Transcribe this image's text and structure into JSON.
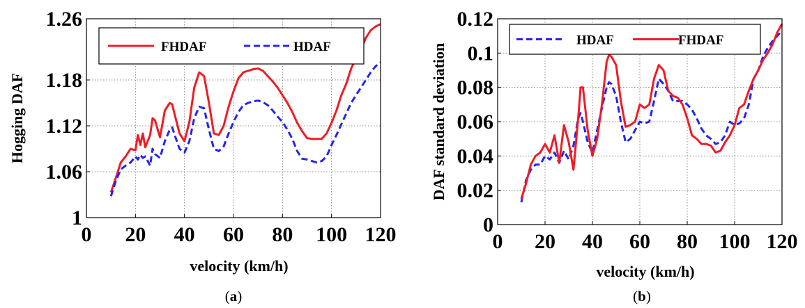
{
  "chart_data": [
    {
      "type": "line",
      "caption_letter": "a",
      "xlabel": "velocity (km/h)",
      "ylabel": "Hogging DAF",
      "xlim": [
        0,
        120
      ],
      "ylim": [
        1.0,
        1.26
      ],
      "xticks": [
        "0",
        "20",
        "40",
        "60",
        "80",
        "100",
        "120"
      ],
      "yticks": [
        "1",
        "1.06",
        "1.12",
        "1.18",
        "1.26"
      ],
      "ytick_values": [
        1.0,
        1.06,
        1.12,
        1.18,
        1.26
      ],
      "grid": true,
      "legend_position": "top",
      "series": [
        {
          "name": "FHDAF",
          "color": "#ee1c25",
          "style": "solid",
          "x": [
            10,
            12,
            14,
            16,
            18,
            20,
            21,
            22,
            23,
            24,
            26,
            27,
            28,
            30,
            32,
            34,
            35,
            36,
            38,
            40,
            42,
            44,
            46,
            48,
            50,
            52,
            54,
            56,
            58,
            60,
            62,
            64,
            66,
            68,
            70,
            72,
            74,
            76,
            78,
            80,
            82,
            84,
            86,
            88,
            90,
            92,
            94,
            96,
            98,
            100,
            102,
            104,
            106,
            108,
            110,
            112,
            114,
            116,
            118,
            120
          ],
          "y": [
            1.033,
            1.052,
            1.072,
            1.08,
            1.09,
            1.088,
            1.108,
            1.095,
            1.11,
            1.092,
            1.108,
            1.13,
            1.127,
            1.105,
            1.14,
            1.15,
            1.148,
            1.135,
            1.11,
            1.1,
            1.125,
            1.17,
            1.19,
            1.185,
            1.15,
            1.11,
            1.108,
            1.12,
            1.145,
            1.165,
            1.182,
            1.19,
            1.192,
            1.194,
            1.195,
            1.192,
            1.185,
            1.178,
            1.17,
            1.16,
            1.15,
            1.138,
            1.124,
            1.113,
            1.104,
            1.103,
            1.103,
            1.103,
            1.11,
            1.124,
            1.14,
            1.16,
            1.175,
            1.195,
            1.208,
            1.22,
            1.235,
            1.245,
            1.25,
            1.253
          ]
        },
        {
          "name": "HDAF",
          "color": "#2424f0",
          "style": "dashed",
          "x": [
            10,
            12,
            14,
            16,
            18,
            20,
            21,
            22,
            23,
            24,
            26,
            27,
            28,
            30,
            32,
            34,
            35,
            36,
            38,
            40,
            42,
            44,
            46,
            48,
            50,
            52,
            54,
            56,
            58,
            60,
            62,
            64,
            66,
            68,
            70,
            72,
            74,
            76,
            78,
            80,
            82,
            84,
            86,
            88,
            90,
            92,
            94,
            96,
            98,
            100,
            102,
            104,
            106,
            108,
            110,
            112,
            114,
            116,
            118,
            120
          ],
          "y": [
            1.028,
            1.048,
            1.063,
            1.068,
            1.072,
            1.08,
            1.076,
            1.082,
            1.078,
            1.08,
            1.068,
            1.09,
            1.083,
            1.078,
            1.1,
            1.115,
            1.118,
            1.108,
            1.09,
            1.085,
            1.1,
            1.13,
            1.145,
            1.143,
            1.115,
            1.09,
            1.087,
            1.093,
            1.11,
            1.125,
            1.138,
            1.147,
            1.15,
            1.152,
            1.153,
            1.151,
            1.147,
            1.14,
            1.132,
            1.125,
            1.115,
            1.103,
            1.087,
            1.077,
            1.076,
            1.074,
            1.072,
            1.074,
            1.08,
            1.095,
            1.108,
            1.122,
            1.136,
            1.15,
            1.16,
            1.17,
            1.18,
            1.19,
            1.198,
            1.203
          ]
        }
      ]
    },
    {
      "type": "line",
      "caption_letter": "b",
      "xlabel": "velocity (km/h)",
      "ylabel": "DAF standard deviation",
      "xlim": [
        0,
        120
      ],
      "ylim": [
        0,
        0.12
      ],
      "xticks": [
        "0",
        "20",
        "40",
        "60",
        "80",
        "100",
        "120"
      ],
      "yticks": [
        "0",
        "0.02",
        "0.04",
        "0.06",
        "0.08",
        "0.1",
        "0.12"
      ],
      "ytick_values": [
        0,
        0.02,
        0.04,
        0.06,
        0.08,
        0.1,
        0.12
      ],
      "grid": true,
      "legend_position": "top",
      "series": [
        {
          "name": "HDAF",
          "color": "#2424f0",
          "style": "dashed",
          "x": [
            10,
            12,
            14,
            16,
            18,
            20,
            22,
            24,
            26,
            28,
            30,
            32,
            34,
            35,
            36,
            38,
            40,
            42,
            44,
            46,
            47,
            48,
            50,
            52,
            54,
            56,
            58,
            60,
            62,
            64,
            66,
            68,
            70,
            72,
            74,
            76,
            78,
            80,
            82,
            84,
            86,
            88,
            90,
            92,
            94,
            96,
            98,
            100,
            102,
            104,
            106,
            108,
            110,
            112,
            114,
            116,
            118,
            120
          ],
          "y": [
            0.013,
            0.026,
            0.032,
            0.035,
            0.035,
            0.04,
            0.038,
            0.042,
            0.036,
            0.043,
            0.038,
            0.046,
            0.062,
            0.065,
            0.06,
            0.048,
            0.042,
            0.055,
            0.068,
            0.08,
            0.083,
            0.082,
            0.075,
            0.06,
            0.048,
            0.05,
            0.055,
            0.06,
            0.059,
            0.06,
            0.072,
            0.085,
            0.082,
            0.078,
            0.072,
            0.072,
            0.072,
            0.07,
            0.067,
            0.062,
            0.056,
            0.052,
            0.05,
            0.047,
            0.048,
            0.052,
            0.06,
            0.058,
            0.059,
            0.062,
            0.07,
            0.085,
            0.09,
            0.098,
            0.103,
            0.107,
            0.11,
            0.113
          ]
        },
        {
          "name": "FHDAF",
          "color": "#ee1c25",
          "style": "solid",
          "x": [
            10,
            12,
            14,
            16,
            18,
            20,
            22,
            24,
            26,
            28,
            30,
            32,
            34,
            35,
            36,
            38,
            40,
            42,
            44,
            46,
            47,
            48,
            50,
            52,
            54,
            56,
            58,
            60,
            62,
            64,
            66,
            68,
            70,
            72,
            74,
            76,
            78,
            80,
            82,
            84,
            86,
            88,
            90,
            92,
            94,
            96,
            98,
            100,
            102,
            104,
            106,
            108,
            110,
            112,
            114,
            116,
            118,
            120
          ],
          "y": [
            0.015,
            0.024,
            0.035,
            0.04,
            0.042,
            0.047,
            0.042,
            0.052,
            0.036,
            0.058,
            0.048,
            0.032,
            0.062,
            0.08,
            0.08,
            0.055,
            0.04,
            0.05,
            0.07,
            0.095,
            0.099,
            0.098,
            0.093,
            0.072,
            0.057,
            0.058,
            0.06,
            0.07,
            0.068,
            0.07,
            0.085,
            0.093,
            0.09,
            0.078,
            0.075,
            0.074,
            0.07,
            0.062,
            0.052,
            0.05,
            0.047,
            0.047,
            0.046,
            0.042,
            0.043,
            0.048,
            0.052,
            0.058,
            0.068,
            0.07,
            0.078,
            0.085,
            0.09,
            0.096,
            0.1,
            0.105,
            0.112,
            0.117
          ]
        }
      ]
    }
  ]
}
